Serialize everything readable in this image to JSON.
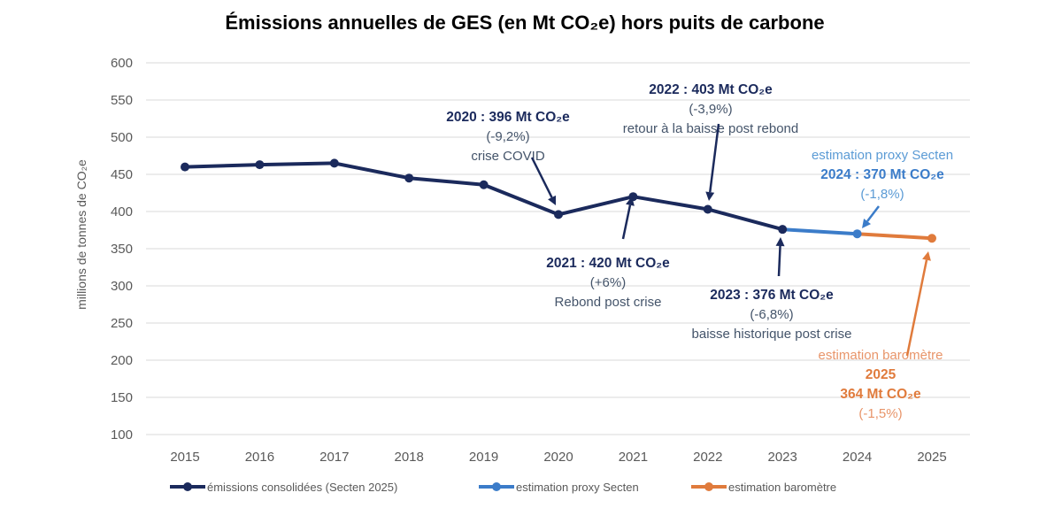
{
  "chart_data": {
    "type": "line",
    "title": "Émissions annuelles de GES (en Mt CO₂e) hors puits de carbone",
    "ylabel": "millions de tonnes de CO₂e",
    "xlabel": "",
    "ylim": [
      100,
      600
    ],
    "yticks": [
      100,
      150,
      200,
      250,
      300,
      350,
      400,
      450,
      500,
      550,
      600
    ],
    "categories": [
      "2015",
      "2016",
      "2017",
      "2018",
      "2019",
      "2020",
      "2021",
      "2022",
      "2023",
      "2024",
      "2025"
    ],
    "grid": true,
    "legend_position": "bottom",
    "series": [
      {
        "name": "émissions consolidées (Secten 2025)",
        "color": "#1b2a5c",
        "x": [
          "2015",
          "2016",
          "2017",
          "2018",
          "2019",
          "2020",
          "2021",
          "2022",
          "2023"
        ],
        "values": [
          460,
          463,
          465,
          445,
          436,
          396,
          420,
          403,
          376
        ]
      },
      {
        "name": "estimation proxy Secten",
        "color": "#3b7cc9",
        "x": [
          "2023",
          "2024"
        ],
        "values": [
          376,
          370
        ]
      },
      {
        "name": "estimation baromètre",
        "color": "#e07b3c",
        "x": [
          "2024",
          "2025"
        ],
        "values": [
          370,
          364
        ]
      }
    ],
    "annotations": [
      {
        "year": "2020",
        "lines": [
          "2020 :  396 Mt CO₂e",
          "(-9,2%)",
          "crise COVID"
        ],
        "color": "#1b2a5c"
      },
      {
        "year": "2021",
        "lines": [
          "2021 : 420 Mt CO₂e",
          "(+6%)",
          "Rebond post crise"
        ],
        "color": "#1b2a5c"
      },
      {
        "year": "2022",
        "lines": [
          "2022 :  403 Mt CO₂e",
          "(-3,9%)",
          "retour à la baisse post rebond"
        ],
        "color": "#1b2a5c"
      },
      {
        "year": "2023",
        "lines": [
          "2023 : 376 Mt CO₂e",
          "(-6,8%)",
          "baisse historique post crise"
        ],
        "color": "#1b2a5c"
      },
      {
        "year": "2024",
        "lines": [
          "estimation proxy Secten",
          "2024 : 370 Mt CO₂e",
          "(-1,8%)"
        ],
        "color": "#3b7cc9"
      },
      {
        "year": "2025",
        "lines": [
          "estimation baromètre",
          "2025",
          "364 Mt CO₂e",
          "(-1,5%)"
        ],
        "color": "#e07b3c"
      }
    ]
  }
}
